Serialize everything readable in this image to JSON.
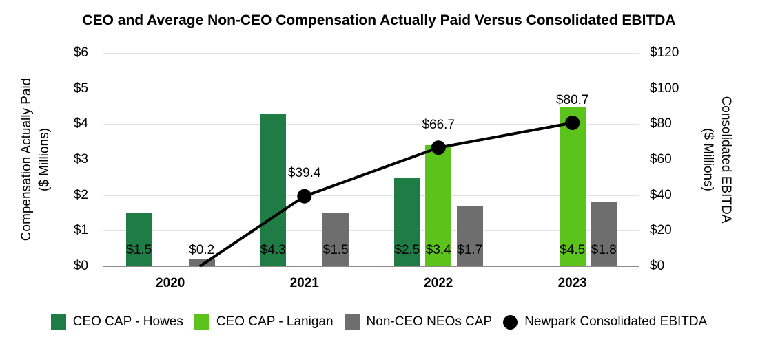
{
  "chart_data": {
    "type": "bar",
    "subtype": "grouped-bars-with-line-overlay",
    "title": "CEO and Average Non-CEO Compensation Actually Paid Versus Consolidated EBITDA",
    "categories": [
      "2020",
      "2021",
      "2022",
      "2023"
    ],
    "bar_series": [
      {
        "name": "CEO CAP - Howes",
        "color": "#1F7C44",
        "values": [
          1.5,
          4.3,
          2.5,
          null
        ],
        "labels": [
          "$1.5",
          "$4.3",
          "$2.5",
          null
        ]
      },
      {
        "name": "CEO CAP - Lanigan",
        "color": "#5BC31B",
        "values": [
          null,
          null,
          3.4,
          4.5
        ],
        "labels": [
          null,
          null,
          "$3.4",
          "$4.5"
        ]
      },
      {
        "name": "Non-CEO NEOs CAP",
        "color": "#6E6E6E",
        "values": [
          0.2,
          1.5,
          1.7,
          1.8
        ],
        "labels": [
          "$0.2",
          "$1.5",
          "$1.7",
          "$1.8"
        ]
      }
    ],
    "line_series": {
      "name": "Newpark Consolidated EBITDA",
      "color": "#000000",
      "values": [
        null,
        39.4,
        66.7,
        80.7
      ],
      "labels": [
        null,
        "$39.4",
        "$66.7",
        "$80.7"
      ],
      "line_clipped_at_zero_axis_in_2020": true
    },
    "left_axis": {
      "title": "Compensation Actually Paid",
      "subtitle": "($ Millions)",
      "ticks": [
        "$6",
        "$5",
        "$4",
        "$3",
        "$2",
        "$1",
        "$0"
      ],
      "range": [
        0,
        6
      ]
    },
    "right_axis": {
      "title": "Consolidated EBITDA",
      "subtitle": "($ Millions)",
      "ticks": [
        "$120",
        "$100",
        "$80",
        "$60",
        "$40",
        "$20",
        "$0"
      ],
      "range": [
        0,
        120
      ]
    },
    "legend": {
      "position": "bottom",
      "items": [
        {
          "label": "CEO CAP - Howes",
          "swatch": "square",
          "color": "#1F7C44"
        },
        {
          "label": "CEO CAP - Lanigan",
          "swatch": "square",
          "color": "#5BC31B"
        },
        {
          "label": "Non-CEO NEOs CAP",
          "swatch": "square",
          "color": "#6E6E6E"
        },
        {
          "label": "Newpark Consolidated EBITDA",
          "swatch": "circle",
          "color": "#000000"
        }
      ]
    },
    "grid": "horizontal-light-gray"
  }
}
